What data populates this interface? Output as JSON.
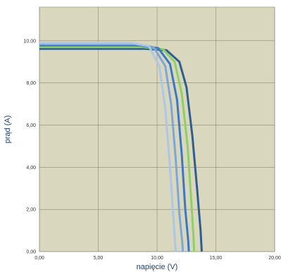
{
  "chart_data": {
    "type": "line",
    "title": "",
    "xlabel": "napięcie (V)",
    "ylabel": "prąd (A)",
    "xlim": [
      0,
      20
    ],
    "ylim": [
      0,
      11.6
    ],
    "x_ticks": [
      "0,00",
      "5,00",
      "10,00",
      "15,00",
      "20,00"
    ],
    "y_ticks": [
      "0,00",
      "2,00",
      "4,00",
      "6,00",
      "8,00",
      "10,00"
    ],
    "x_tick_values": [
      0,
      5,
      10,
      15,
      20
    ],
    "y_tick_values": [
      0,
      2,
      4,
      6,
      8,
      10
    ],
    "grid": true,
    "legend": "none",
    "colors": {
      "plot_background": "#d9d7bd",
      "grid": "#8a8a7a",
      "series": [
        "#2e5d8e",
        "#8fcf6a",
        "#3b78c2",
        "#7ea6d6",
        "#adc7e6"
      ]
    },
    "series": [
      {
        "x": [
          0,
          9.0,
          10.8,
          11.9,
          12.5,
          13.0,
          13.4,
          13.7,
          13.8
        ],
        "y": [
          9.62,
          9.62,
          9.55,
          9.0,
          7.8,
          5.5,
          3.0,
          1.0,
          0
        ]
      },
      {
        "x": [
          0,
          8.8,
          10.5,
          11.5,
          12.1,
          12.6,
          12.9,
          13.1,
          13.15
        ],
        "y": [
          9.7,
          9.7,
          9.6,
          9.0,
          7.5,
          5.0,
          2.5,
          0.7,
          0
        ]
      },
      {
        "x": [
          0,
          8.5,
          10.1,
          11.1,
          11.7,
          12.1,
          12.4,
          12.65,
          12.7
        ],
        "y": [
          9.78,
          9.78,
          9.65,
          8.9,
          7.2,
          4.6,
          2.0,
          0.5,
          0
        ]
      },
      {
        "x": [
          0,
          8.2,
          9.7,
          10.7,
          11.2,
          11.6,
          11.9,
          12.15,
          12.2
        ],
        "y": [
          9.84,
          9.84,
          9.7,
          8.8,
          7.0,
          4.3,
          1.8,
          0.4,
          0
        ]
      },
      {
        "x": [
          0,
          7.9,
          9.3,
          10.2,
          10.7,
          11.1,
          11.4,
          11.55,
          11.6
        ],
        "y": [
          9.9,
          9.9,
          9.75,
          8.8,
          6.8,
          4.0,
          1.5,
          0.3,
          0
        ]
      }
    ]
  }
}
